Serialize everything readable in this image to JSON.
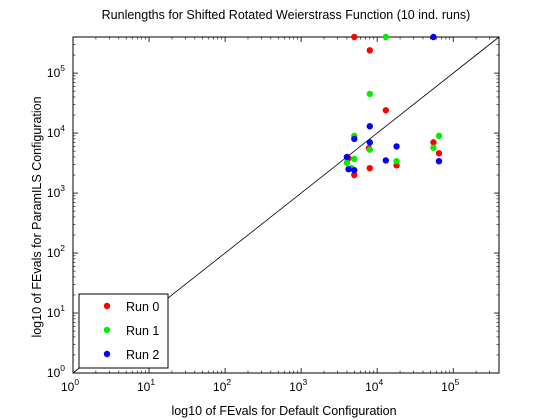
{
  "chart_data": {
    "type": "scatter",
    "title": "Runlengths for Shifted Rotated Weierstrass Function (10 ind. runs)",
    "xlabel": "log10 of FEvals for Default Configuration",
    "ylabel": "log10 of FEvals for ParamILS Configuration",
    "x_scale": "log",
    "y_scale": "log",
    "xlim": [
      1,
      400000
    ],
    "ylim": [
      1,
      400000
    ],
    "x_ticks": [
      {
        "base": "10",
        "exp": "0",
        "value": 1
      },
      {
        "base": "10",
        "exp": "1",
        "value": 10
      },
      {
        "base": "10",
        "exp": "2",
        "value": 100
      },
      {
        "base": "10",
        "exp": "3",
        "value": 1000
      },
      {
        "base": "10",
        "exp": "4",
        "value": 10000
      },
      {
        "base": "10",
        "exp": "5",
        "value": 100000
      }
    ],
    "y_ticks": [
      {
        "base": "10",
        "exp": "0",
        "value": 1
      },
      {
        "base": "10",
        "exp": "1",
        "value": 10
      },
      {
        "base": "10",
        "exp": "2",
        "value": 100
      },
      {
        "base": "10",
        "exp": "3",
        "value": 1000
      },
      {
        "base": "10",
        "exp": "4",
        "value": 10000
      },
      {
        "base": "10",
        "exp": "5",
        "value": 100000
      }
    ],
    "diagonal": true,
    "grid": false,
    "legend_position": "bottom-left",
    "series": [
      {
        "name": "Run 0",
        "color": "#ff0000",
        "points": [
          [
            5000,
            400000
          ],
          [
            8000,
            240000
          ],
          [
            13000,
            24000
          ],
          [
            5000,
            2000
          ],
          [
            8000,
            2600
          ],
          [
            18000,
            2900
          ],
          [
            55000,
            7000
          ],
          [
            65000,
            4600
          ],
          [
            4200,
            3800
          ],
          [
            7800,
            5600
          ]
        ]
      },
      {
        "name": "Run 1",
        "color": "#00ee00",
        "points": [
          [
            13000,
            400000
          ],
          [
            8000,
            45000
          ],
          [
            5000,
            9000
          ],
          [
            65000,
            9000
          ],
          [
            8000,
            5300
          ],
          [
            5000,
            3700
          ],
          [
            18000,
            3400
          ],
          [
            55000,
            5700
          ],
          [
            4000,
            3200
          ],
          [
            4600,
            2600
          ]
        ]
      },
      {
        "name": "Run 2",
        "color": "#0000ff",
        "points": [
          [
            55000,
            400000
          ],
          [
            8000,
            13000
          ],
          [
            5000,
            8000
          ],
          [
            8000,
            7000
          ],
          [
            18000,
            6000
          ],
          [
            4000,
            4000
          ],
          [
            13000,
            3500
          ],
          [
            65000,
            3400
          ],
          [
            4200,
            2500
          ],
          [
            5000,
            2400
          ]
        ]
      }
    ]
  }
}
